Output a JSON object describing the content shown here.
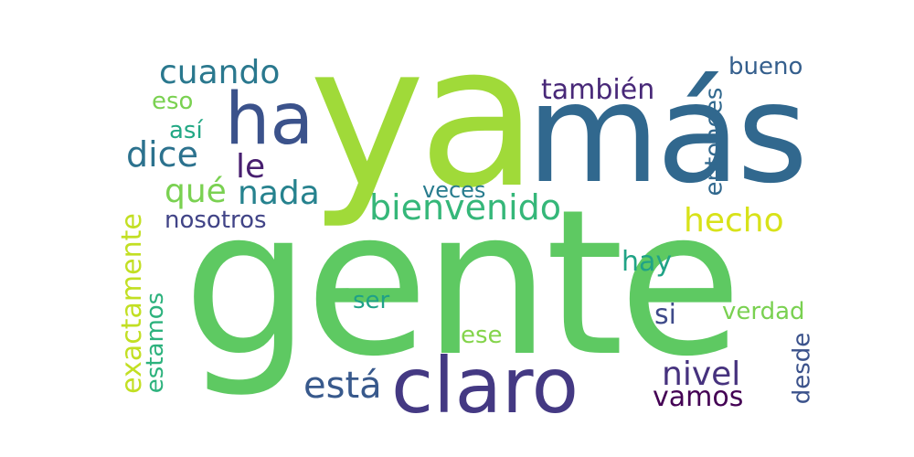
{
  "words": {
    "gente": {
      "text": "gente",
      "color": "#5ec962"
    },
    "ya": {
      "text": "ya",
      "color": "#a0da39"
    },
    "mas": {
      "text": "más",
      "color": "#31688e"
    },
    "claro": {
      "text": "claro",
      "color": "#443983"
    },
    "ha": {
      "text": "ha",
      "color": "#3b528b"
    },
    "cuando": {
      "text": "cuando",
      "color": "#2a788e"
    },
    "eso": {
      "text": "eso",
      "color": "#7ad151"
    },
    "asi": {
      "text": "así",
      "color": "#22a884"
    },
    "dice": {
      "text": "dice",
      "color": "#2c728e"
    },
    "le": {
      "text": "le",
      "color": "#481f70"
    },
    "que": {
      "text": "qué",
      "color": "#7ad151"
    },
    "nada": {
      "text": "nada",
      "color": "#26828e"
    },
    "nosotros": {
      "text": "nosotros",
      "color": "#414487"
    },
    "veces": {
      "text": "veces",
      "color": "#287c8e"
    },
    "bienvenido": {
      "text": "bienvenido",
      "color": "#35b779"
    },
    "tambien": {
      "text": "también",
      "color": "#482878"
    },
    "bueno": {
      "text": "bueno",
      "color": "#355f8d"
    },
    "entonces": {
      "text": "entonces",
      "color": "#31688e"
    },
    "hecho": {
      "text": "hecho",
      "color": "#d8e219"
    },
    "hay": {
      "text": "hay",
      "color": "#20a386"
    },
    "exactamente": {
      "text": "exactamente",
      "color": "#c2df23"
    },
    "estamos": {
      "text": "estamos",
      "color": "#2db27d"
    },
    "ser": {
      "text": "ser",
      "color": "#1fa187"
    },
    "ese": {
      "text": "ese",
      "color": "#84d44b"
    },
    "si": {
      "text": "si",
      "color": "#3e4a89"
    },
    "verdad": {
      "text": "verdad",
      "color": "#7ad151"
    },
    "esta": {
      "text": "está",
      "color": "#38598c"
    },
    "nivel": {
      "text": "nivel",
      "color": "#46327e"
    },
    "vamos": {
      "text": "vamos",
      "color": "#440154"
    },
    "desde": {
      "text": "desde",
      "color": "#3b528b"
    }
  }
}
